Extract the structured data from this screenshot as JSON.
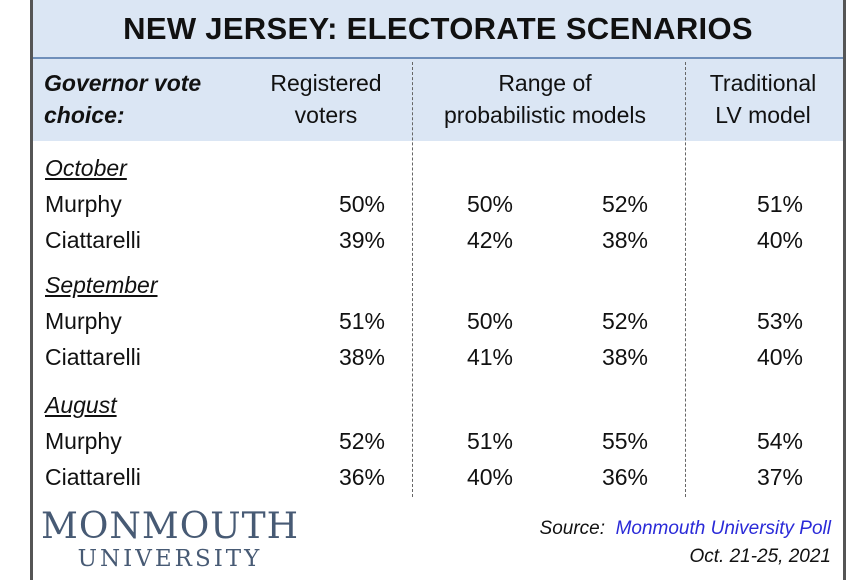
{
  "title": "NEW JERSEY: ELECTORATE SCENARIOS",
  "header": {
    "col0_line1": "Governor vote",
    "col0_line2": "choice:",
    "col1_line1": "Registered",
    "col1_line2": "voters",
    "col2_line1": "Range of",
    "col2_line2": "probabilistic models",
    "col3_line1": "Traditional",
    "col3_line2": "LV model"
  },
  "chart_data": {
    "type": "table",
    "title": "NEW JERSEY: ELECTORATE SCENARIOS",
    "columns": [
      "Registered voters",
      "Range of probabilistic models (low)",
      "Range of probabilistic models (high)",
      "Traditional LV model"
    ],
    "sections": [
      {
        "month": "October",
        "rows": [
          {
            "label": "Murphy",
            "values": [
              "50%",
              "50%",
              "52%",
              "51%"
            ]
          },
          {
            "label": "Ciattarelli",
            "values": [
              "39%",
              "42%",
              "38%",
              "40%"
            ]
          }
        ]
      },
      {
        "month": "September",
        "rows": [
          {
            "label": "Murphy",
            "values": [
              "51%",
              "50%",
              "52%",
              "53%"
            ]
          },
          {
            "label": "Ciattarelli",
            "values": [
              "38%",
              "41%",
              "38%",
              "40%"
            ]
          }
        ]
      },
      {
        "month": "August",
        "rows": [
          {
            "label": "Murphy",
            "values": [
              "52%",
              "51%",
              "55%",
              "54%"
            ]
          },
          {
            "label": "Ciattarelli",
            "values": [
              "36%",
              "40%",
              "36%",
              "37%"
            ]
          }
        ]
      }
    ]
  },
  "logo": {
    "line1": "MONMOUTH",
    "line2": "UNIVERSITY"
  },
  "source": {
    "prefix": "Source:",
    "name": "Monmouth University Poll",
    "dates": "Oct. 21-25, 2021"
  }
}
